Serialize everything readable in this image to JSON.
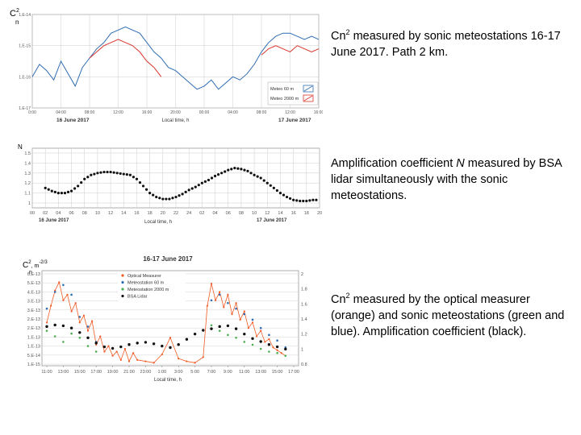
{
  "captions": {
    "c1_sym": "Cn",
    "c1_exp": "2",
    "c1_rest": " measured by sonic meteostations 16-17 June 2017. Path 2 km.",
    "c2_pre": "Amplification coefficient ",
    "c2_n": "N",
    "c2_rest": " measured by BSA lidar simultaneously with the sonic meteostations.",
    "c3_sym": "Cn",
    "c3_exp": "2",
    "c3_rest": " measured by the optical measurer (orange) and sonic meteostations (green and blue). Amplification coefficient (black)."
  },
  "colors": {
    "blue": "#2f6db3",
    "red": "#d9342b",
    "black": "#111111",
    "orange": "#f15a24",
    "green": "#4caf50",
    "grid": "#cccccc"
  },
  "chart_data": [
    {
      "type": "line",
      "title": "",
      "ylabel_sym": "C",
      "ylabel_sub": "n",
      "ylabel_exp": "2",
      "xlabel": "Local time, h",
      "x_ticks": [
        "0:00",
        "04:00",
        "08:00",
        "12:00",
        "16:00",
        "20:00",
        "00:00",
        "04:00",
        "08:00",
        "12:00",
        "16:00"
      ],
      "y_ticks": [
        "1.E-14",
        "1.E-15",
        "1.E-16",
        "1.E-17"
      ],
      "ylim": [
        -17,
        -14
      ],
      "xlim": [
        0,
        40
      ],
      "date_labels": [
        "16 June 2017",
        "17 June 2017"
      ],
      "legend": [
        "Meteo 60 m",
        "Meteo 2000 m"
      ],
      "series": [
        {
          "name": "Meteo 60 m",
          "color": "blue",
          "x": [
            0,
            1,
            2,
            3,
            4,
            5,
            6,
            7,
            8,
            9,
            10,
            11,
            12,
            13,
            14,
            15,
            16,
            17,
            18,
            19,
            20,
            21,
            22,
            23,
            24,
            25,
            26,
            27,
            28,
            29,
            30,
            31,
            32,
            33,
            34,
            35,
            36,
            37,
            38,
            39,
            40
          ],
          "y": [
            -16.0,
            -15.6,
            -15.8,
            -16.1,
            -15.5,
            -15.9,
            -16.3,
            -15.7,
            -15.4,
            -15.1,
            -14.9,
            -14.6,
            -14.5,
            -14.4,
            -14.5,
            -14.6,
            -14.9,
            -15.2,
            -15.4,
            -15.7,
            -15.8,
            -16.0,
            -16.2,
            -16.4,
            -16.3,
            -16.1,
            -16.4,
            -16.2,
            -16.0,
            -16.1,
            -15.9,
            -15.6,
            -15.2,
            -14.9,
            -14.7,
            -14.6,
            -14.6,
            -14.7,
            -14.8,
            -14.7,
            -14.8
          ]
        },
        {
          "name": "Meteo 2000 m",
          "color": "red",
          "x": [
            8,
            9,
            10,
            11,
            12,
            13,
            14,
            15,
            16,
            17,
            18,
            32,
            33,
            34,
            35,
            36,
            37,
            38,
            39,
            40
          ],
          "y": [
            -15.4,
            -15.2,
            -15.0,
            -14.9,
            -14.8,
            -14.9,
            -15.0,
            -15.2,
            -15.5,
            -15.7,
            -16.0,
            -15.3,
            -15.1,
            -15.0,
            -15.1,
            -15.2,
            -15.0,
            -15.1,
            -15.2,
            -15.1
          ]
        }
      ]
    },
    {
      "type": "scatter",
      "ylabel": "N",
      "xlabel": "Local time, h",
      "x_ticks": [
        "00",
        "02",
        "04",
        "06",
        "08",
        "10",
        "12",
        "14",
        "16",
        "18",
        "20",
        "22",
        "24",
        "02",
        "04",
        "06",
        "08",
        "10",
        "12",
        "14",
        "16",
        "18",
        "20"
      ],
      "y_ticks": [
        "1",
        "1.1",
        "1.2",
        "1.3",
        "1.4",
        "1.5"
      ],
      "ylim": [
        1.0,
        1.5
      ],
      "xlim": [
        0,
        44
      ],
      "date_labels": [
        "16 June 2017",
        "17 June 2017"
      ],
      "series": [
        {
          "name": "BSA Lidar",
          "color": "black",
          "x": [
            2,
            3,
            4,
            5,
            6,
            7,
            8,
            9,
            10,
            11,
            12,
            13,
            14,
            15,
            16,
            17,
            18,
            19,
            20,
            21,
            22,
            23,
            24,
            25,
            26,
            27,
            28,
            29,
            30,
            31,
            32,
            33,
            34,
            35,
            36,
            37,
            38,
            39,
            40,
            41,
            42,
            43
          ],
          "y": [
            1.15,
            1.12,
            1.1,
            1.1,
            1.12,
            1.17,
            1.24,
            1.28,
            1.3,
            1.31,
            1.31,
            1.3,
            1.29,
            1.28,
            1.24,
            1.17,
            1.1,
            1.06,
            1.04,
            1.04,
            1.06,
            1.09,
            1.13,
            1.16,
            1.2,
            1.23,
            1.27,
            1.3,
            1.33,
            1.35,
            1.34,
            1.32,
            1.28,
            1.25,
            1.2,
            1.15,
            1.1,
            1.06,
            1.03,
            1.02,
            1.02,
            1.03
          ]
        }
      ]
    },
    {
      "type": "scatter",
      "title": "16-17 June 2017",
      "ylabel_sym": "C",
      "ylabel_sub": "n",
      "ylabel_exp": "2",
      "ylabel_units": ", m",
      "ylabel_units_exp": "-2/3",
      "xlabel": "Local time, h",
      "x_ticks": [
        "11:00",
        "13:00",
        "15:00",
        "17:00",
        "19:00",
        "21:00",
        "23:00",
        "1:00",
        "3:00",
        "5:00",
        "7:00",
        "9:00",
        "11:00",
        "13:00",
        "15:00",
        "17:00"
      ],
      "y_ticks_left": [
        "6.E-13",
        "5.E-13",
        "4.E-13",
        "3.E-13",
        "3.E-13",
        "2.E-13",
        "2.E-13",
        "1.E-13",
        "1.E-13",
        "5.E-14",
        "1.E-15"
      ],
      "y_ticks_right": [
        "2",
        "1.8",
        "1.6",
        "1.4",
        "1.2",
        "1",
        "0.8"
      ],
      "ylim_left": [
        0,
        6.5
      ],
      "ylim_right": [
        0.8,
        2.0
      ],
      "xlim": [
        0,
        30
      ],
      "legend": [
        "Optical Measurer",
        "Meteostation 60 m",
        "Meteostation 2000 m",
        "BSA Lidar"
      ],
      "series": [
        {
          "name": "Optical Measurer",
          "color": "orange",
          "axis": "left",
          "x": [
            0,
            0.5,
            1,
            1.5,
            2,
            2.5,
            3,
            3.5,
            4,
            4.5,
            5,
            5.5,
            6,
            6.5,
            7,
            7.5,
            8,
            8.5,
            9,
            9.5,
            10,
            10.5,
            11,
            12,
            13,
            14,
            15,
            16,
            17,
            18,
            19,
            19.5,
            20,
            20.5,
            21,
            21.5,
            22,
            22.5,
            23,
            23.5,
            24,
            24.5,
            25,
            25.5,
            26,
            26.5,
            27,
            27.5,
            28,
            28.5,
            29
          ],
          "y": [
            3.0,
            4.2,
            5.3,
            5.9,
            4.6,
            5.0,
            3.8,
            4.4,
            3.0,
            3.5,
            2.4,
            3.1,
            1.4,
            2.0,
            0.9,
            1.3,
            0.6,
            0.9,
            0.3,
            1.1,
            0.2,
            0.8,
            0.3,
            0.2,
            0.1,
            0.7,
            1.9,
            0.4,
            0.2,
            0.1,
            0.5,
            4.2,
            5.8,
            4.6,
            5.2,
            4.1,
            5.0,
            3.6,
            4.4,
            3.2,
            3.8,
            2.6,
            3.0,
            2.0,
            2.4,
            1.6,
            1.8,
            1.2,
            1.0,
            0.8,
            0.6
          ]
        },
        {
          "name": "Meteostation 60 m",
          "color": "blue",
          "axis": "left",
          "x": [
            0,
            1,
            2,
            3,
            4,
            5,
            6,
            20,
            21,
            22,
            23,
            24,
            25,
            26,
            27,
            28,
            29
          ],
          "y": [
            4.0,
            5.2,
            5.7,
            5.0,
            3.4,
            2.7,
            1.6,
            4.6,
            5.0,
            4.4,
            4.0,
            3.6,
            3.2,
            2.6,
            2.1,
            1.7,
            1.2
          ]
        },
        {
          "name": "Meteostation 2000 m",
          "color": "green",
          "axis": "left",
          "x": [
            0,
            1,
            2,
            3,
            4,
            5,
            6,
            20,
            21,
            22,
            23,
            24,
            25,
            26,
            27,
            28,
            29
          ],
          "y": [
            2.4,
            2.0,
            1.6,
            2.2,
            1.9,
            1.3,
            0.9,
            2.8,
            2.4,
            2.1,
            1.9,
            1.6,
            1.4,
            1.1,
            0.9,
            0.8,
            0.6
          ]
        },
        {
          "name": "BSA Lidar",
          "color": "black",
          "axis": "right",
          "x": [
            0,
            1,
            2,
            3,
            4,
            5,
            6,
            7,
            8,
            9,
            10,
            11,
            12,
            13,
            14,
            15,
            16,
            17,
            18,
            19,
            20,
            21,
            22,
            23,
            24,
            25,
            26,
            27,
            28,
            29
          ],
          "y": [
            1.3,
            1.32,
            1.31,
            1.28,
            1.22,
            1.15,
            1.08,
            1.03,
            1.01,
            1.03,
            1.06,
            1.08,
            1.09,
            1.07,
            1.04,
            1.02,
            1.06,
            1.13,
            1.2,
            1.25,
            1.27,
            1.3,
            1.31,
            1.27,
            1.2,
            1.14,
            1.1,
            1.06,
            1.03,
            1.0
          ]
        }
      ]
    }
  ]
}
